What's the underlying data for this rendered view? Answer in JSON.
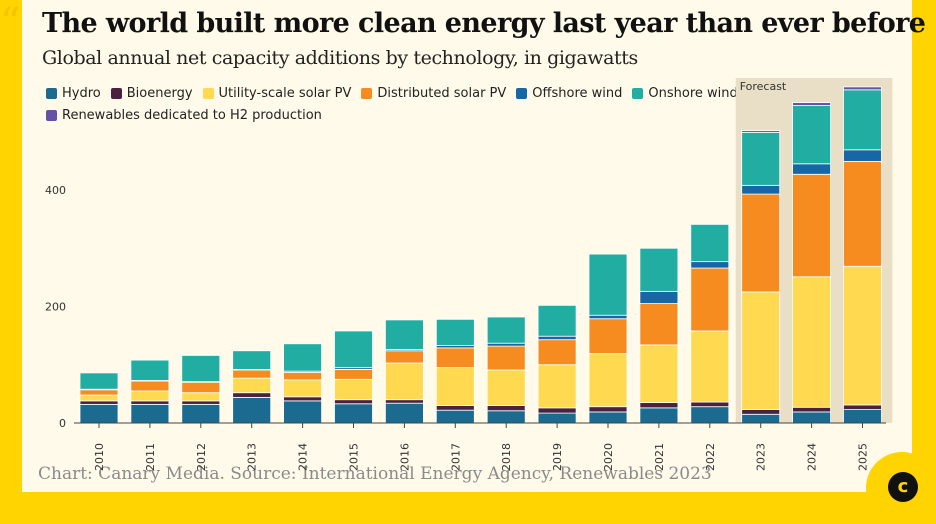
{
  "title": "The world built more clean energy last year than ever before",
  "subtitle": "Global annual net capacity additions by technology, in gigawatts",
  "footer": "Chart: Canary Media. Source: International Energy Agency, Renewables 2023",
  "forecast_label": "Forecast",
  "colors": {
    "background": "#FFD400",
    "card": "#FFFAEA",
    "forecast_band": "#E8DFC6"
  },
  "chart_data": {
    "type": "bar",
    "stacked": true,
    "categories": [
      "2010",
      "2011",
      "2012",
      "2013",
      "2014",
      "2015",
      "2016",
      "2017",
      "2018",
      "2019",
      "2020",
      "2021",
      "2022",
      "2023",
      "2024",
      "2025"
    ],
    "forecast_categories": [
      "2023",
      "2024",
      "2025"
    ],
    "ylim": [
      0,
      500
    ],
    "yticks": [
      0,
      200,
      400
    ],
    "grid": false,
    "legend_position": "top-left",
    "series": [
      {
        "name": "Hydro",
        "color": "#1B6A8F",
        "values": [
          32,
          32,
          32,
          44,
          38,
          33,
          34,
          22,
          21,
          17,
          19,
          26,
          28,
          15,
          19,
          23
        ]
      },
      {
        "name": "Bioenergy",
        "color": "#4A2140",
        "values": [
          6,
          6,
          6,
          8,
          7,
          7,
          6,
          8,
          9,
          9,
          9,
          9,
          8,
          8,
          8,
          8
        ]
      },
      {
        "name": "Utility-scale solar PV",
        "color": "#FFD94F",
        "values": [
          10,
          17,
          14,
          25,
          29,
          35,
          63,
          65,
          61,
          74,
          91,
          99,
          122,
          202,
          224,
          238
        ]
      },
      {
        "name": "Distributed solar PV",
        "color": "#F68B1F",
        "values": [
          9,
          17,
          18,
          14,
          13,
          17,
          21,
          34,
          41,
          43,
          60,
          71,
          108,
          168,
          176,
          180
        ]
      },
      {
        "name": "Offshore wind",
        "color": "#1767A7",
        "values": [
          1,
          1,
          1,
          1,
          2,
          3,
          2,
          4,
          5,
          6,
          6,
          21,
          11,
          15,
          18,
          20
        ]
      },
      {
        "name": "Onshore wind",
        "color": "#22ADA2",
        "values": [
          28,
          35,
          45,
          32,
          47,
          63,
          51,
          45,
          45,
          53,
          105,
          74,
          64,
          91,
          100,
          103
        ]
      },
      {
        "name": "Renewables dedicated to H2 production",
        "color": "#6451A8",
        "values": [
          0,
          0,
          0,
          0,
          0,
          0,
          0,
          0,
          0,
          0,
          0,
          0,
          0,
          3,
          5,
          5
        ]
      }
    ]
  }
}
